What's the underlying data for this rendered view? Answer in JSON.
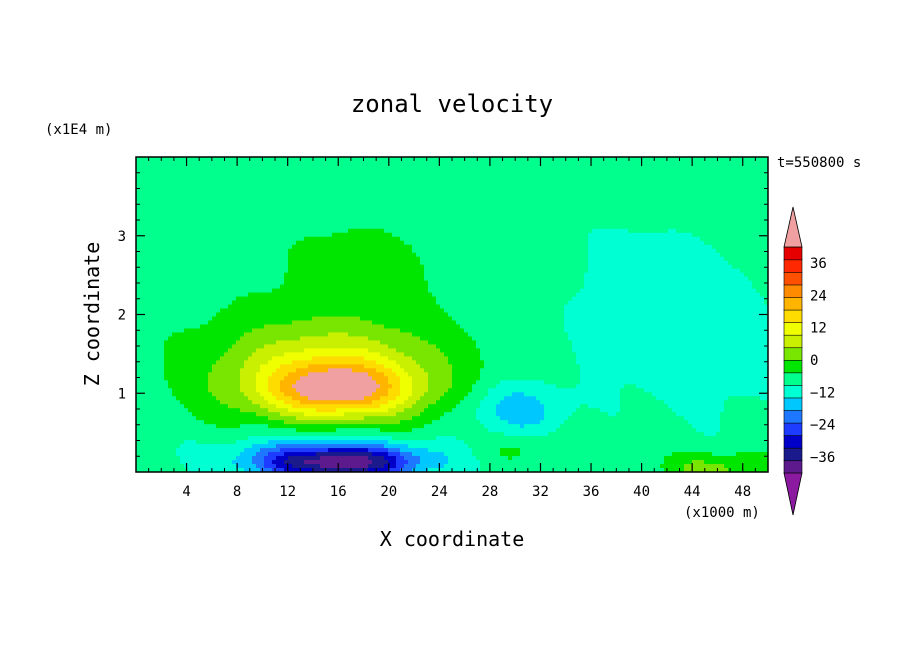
{
  "chart_data": {
    "type": "heatmap",
    "title": "zonal velocity",
    "xlabel": "X coordinate",
    "ylabel": "Z coordinate",
    "x_unit": "(x1000 m)",
    "y_unit": "(x1E4 m)",
    "time_label": "t=550800 s",
    "xlim": [
      0,
      50
    ],
    "ylim": [
      0,
      4
    ],
    "x_ticks": [
      4,
      8,
      12,
      16,
      20,
      24,
      28,
      32,
      36,
      40,
      44,
      48
    ],
    "x_tick_labels": [
      "4",
      "8",
      "12",
      "16",
      "20",
      "24",
      "28",
      "32",
      "36",
      "40",
      "44",
      "48"
    ],
    "y_ticks": [
      1,
      2,
      3
    ],
    "y_tick_labels": [
      "1",
      "2",
      "3"
    ],
    "colorbar": {
      "min": -42,
      "max": 42,
      "step": 6,
      "extend": "both",
      "tick_values": [
        36,
        24,
        12,
        0,
        -12,
        -24,
        -36
      ],
      "tick_labels": [
        "36",
        "24",
        "12",
        "0",
        "−12",
        "−24",
        "−36"
      ],
      "colors": [
        "#5c1a8c",
        "#1a1a8c",
        "#0000c8",
        "#1e3cff",
        "#1e78ff",
        "#00c8ff",
        "#00ffd2",
        "#00ff8c",
        "#00e600",
        "#78e600",
        "#c8f000",
        "#f0ff00",
        "#ffdc00",
        "#ffb400",
        "#ff8c00",
        "#ff5000",
        "#ff2800",
        "#e60000"
      ],
      "under_color": "#8c1aa0",
      "over_color": "#f0a0a0"
    },
    "features": [
      {
        "x": 16,
        "z": 1.05,
        "value": 28,
        "sx": 5.5,
        "sz": 0.33
      },
      {
        "x": 15,
        "z": 1.3,
        "value": 16,
        "sx": 8.5,
        "sz": 0.6
      },
      {
        "x": 16,
        "z": 1.1,
        "value": 8,
        "sx": 11,
        "sz": 0.95
      },
      {
        "x": 16,
        "z": 0.12,
        "value": -40,
        "sx": 6.5,
        "sz": 0.22
      },
      {
        "x": 15,
        "z": 0.3,
        "value": -10,
        "sx": 10,
        "sz": 0.35
      },
      {
        "x": 30,
        "z": 0.8,
        "value": -13,
        "sx": 4,
        "sz": 0.35
      },
      {
        "x": 45,
        "z": 1.5,
        "value": -5,
        "sx": 7,
        "sz": 0.9
      },
      {
        "x": 40,
        "z": 2.2,
        "value": -4,
        "sx": 10,
        "sz": 1.2
      },
      {
        "x": 46,
        "z": 0.05,
        "value": 12,
        "sx": 4,
        "sz": 0.2
      },
      {
        "x": 31,
        "z": 0.3,
        "value": 5,
        "sx": 4,
        "sz": 0.18
      },
      {
        "x": 18,
        "z": 2.8,
        "value": 4,
        "sx": 9,
        "sz": 0.7
      },
      {
        "x": 30,
        "z": 3.1,
        "value": -1,
        "sx": 14,
        "sz": 0.35
      }
    ]
  }
}
